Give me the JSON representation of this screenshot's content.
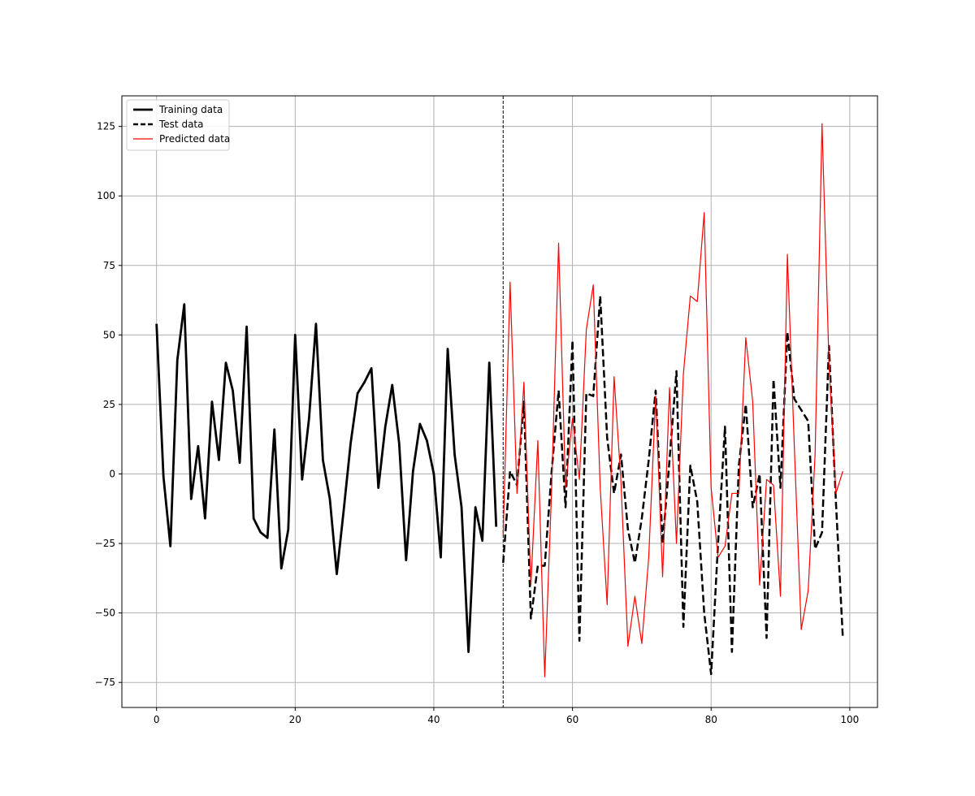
{
  "chart_data": {
    "type": "line",
    "title": "",
    "xlabel": "",
    "ylabel": "",
    "xlim": [
      -5,
      104
    ],
    "ylim": [
      -84,
      136
    ],
    "x_ticks": [
      0,
      20,
      40,
      60,
      80,
      100
    ],
    "y_ticks": [
      -75,
      -50,
      -25,
      0,
      25,
      50,
      75,
      100,
      125
    ],
    "x_tick_labels": [
      "0",
      "20",
      "40",
      "60",
      "80",
      "100"
    ],
    "y_tick_labels": [
      "−75",
      "−50",
      "−25",
      "0",
      "25",
      "50",
      "75",
      "100",
      "125"
    ],
    "grid": true,
    "legend_position": "top-left",
    "split_line_x": 50,
    "series": [
      {
        "name": "Training data",
        "color": "#000000",
        "style": "solid",
        "x_start": 0,
        "values": [
          54,
          -1,
          -26,
          41,
          61,
          -9,
          10,
          -16,
          26,
          5,
          40,
          30,
          4,
          53,
          -16,
          -21,
          -23,
          16,
          -34,
          -20,
          50,
          -2,
          20,
          54,
          5,
          -9,
          -36,
          -13,
          11,
          29,
          33,
          38,
          -5,
          17,
          32,
          11,
          -31,
          1,
          18,
          12,
          0,
          -30,
          45,
          7,
          -12,
          -64,
          -12,
          -24,
          40,
          -19
        ]
      },
      {
        "name": "Test data",
        "color": "#000000",
        "style": "dashed",
        "x_start": 50,
        "values": [
          -32,
          1,
          -4,
          26,
          -52,
          -33,
          -33,
          1,
          30,
          -12,
          48,
          -60,
          29,
          28,
          64,
          13,
          -7,
          7,
          -20,
          -32,
          -16,
          5,
          30,
          -25,
          5,
          37,
          -55,
          3,
          -10,
          -50,
          -72,
          -25,
          17,
          -64,
          3,
          25,
          -12,
          0,
          -59,
          34,
          -5,
          51,
          27,
          23,
          19,
          -27,
          -21,
          46,
          -10,
          -59
        ]
      },
      {
        "name": "Predicted data",
        "color": "#ff0000",
        "style": "solid",
        "x_start": 50,
        "values": [
          -22,
          69,
          -7,
          33,
          -40,
          12,
          -73,
          -5,
          83,
          -5,
          20,
          -2,
          52,
          68,
          -5,
          -47,
          35,
          -3,
          -62,
          -44,
          -61,
          -30,
          28,
          -37,
          31,
          -25,
          36,
          64,
          62,
          94,
          -5,
          -30,
          -26,
          -7,
          -7,
          49,
          26,
          -40,
          -2,
          -4,
          -44,
          79,
          10,
          -56,
          -42,
          7,
          126,
          40,
          -7,
          1
        ]
      }
    ]
  }
}
